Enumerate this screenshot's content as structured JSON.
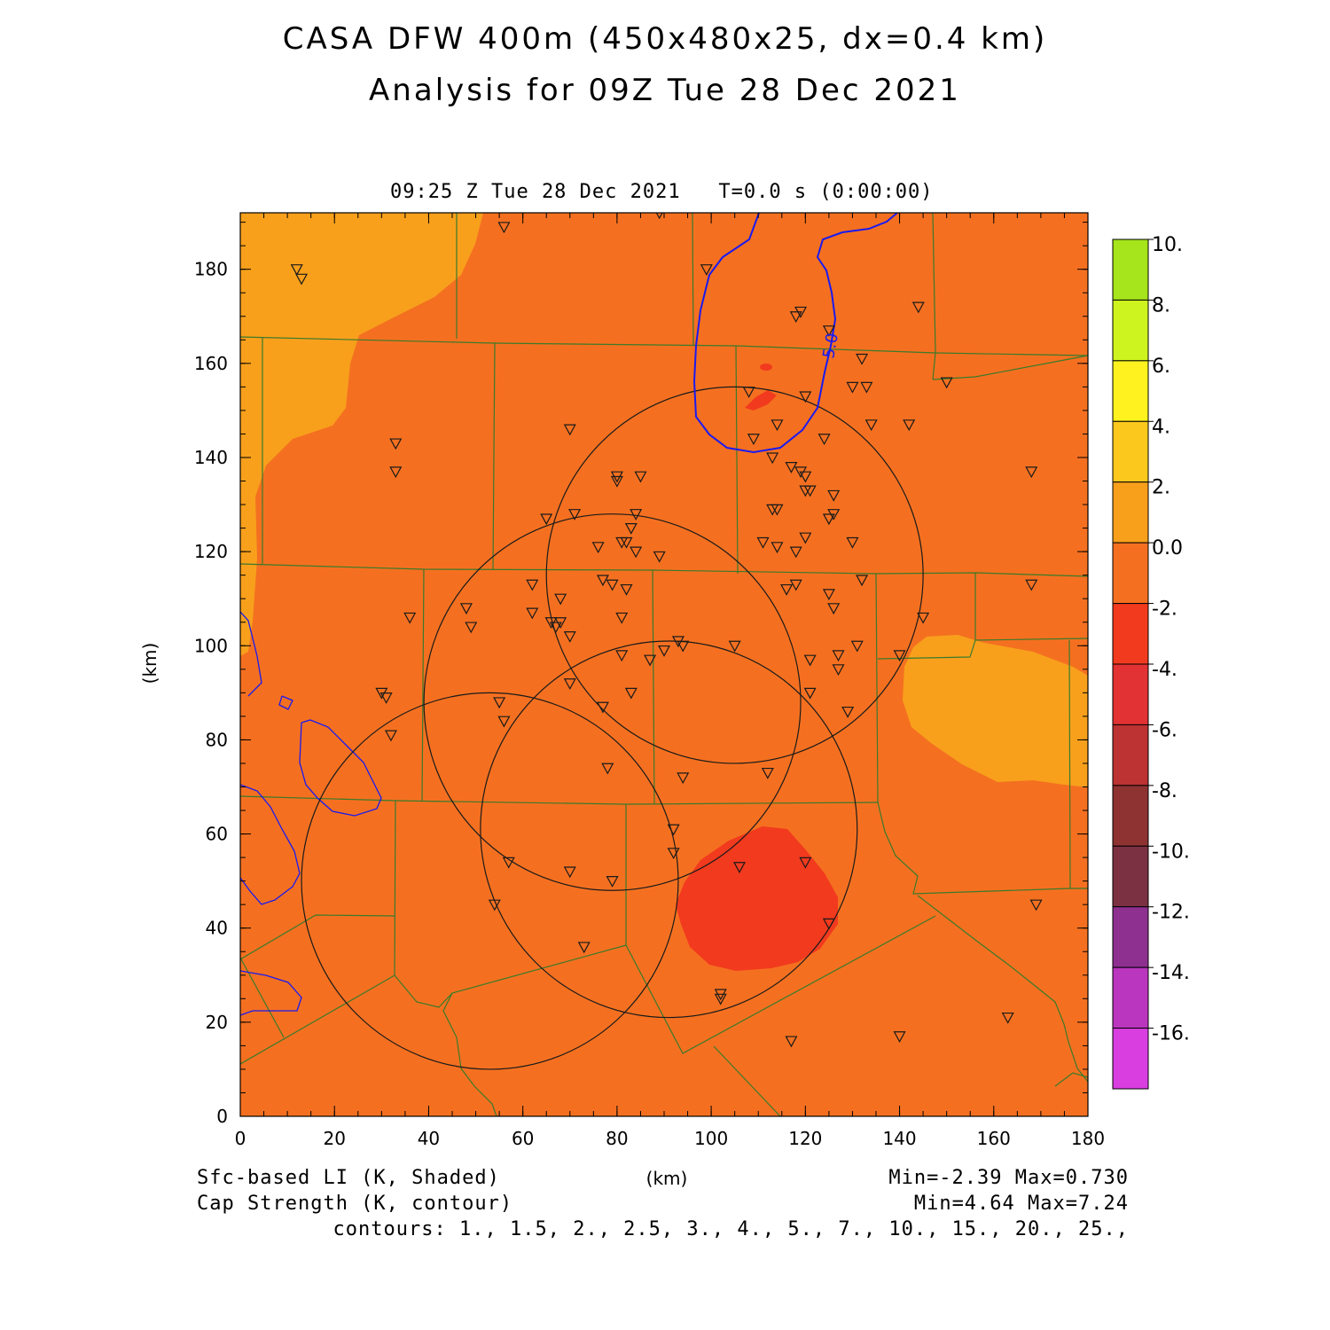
{
  "title": {
    "line1": "CASA DFW 400m (450x480x25, dx=0.4 km)",
    "line2": "Analysis for 09Z Tue 28 Dec 2021"
  },
  "subtitle": "09:25 Z Tue 28 Dec 2021   T=0.0 s (0:00:00)",
  "axes": {
    "xlabel": "(km)",
    "ylabel": "(km)",
    "xlim": [
      0,
      180
    ],
    "ylim": [
      0,
      192
    ],
    "xticks": [
      "0",
      "20",
      "40",
      "60",
      "80",
      "100",
      "120",
      "140",
      "160",
      "180"
    ],
    "yticks": [
      "0",
      "20",
      "40",
      "60",
      "80",
      "100",
      "120",
      "140",
      "160",
      "180"
    ]
  },
  "colorbar": {
    "labels": [
      "10.",
      "8.",
      "6.",
      "4.",
      "2.",
      "0.0",
      "-2.",
      "-4.",
      "-6.",
      "-8.",
      "-10.",
      "-12.",
      "-14.",
      "-16."
    ],
    "colors": [
      "#a6e41c",
      "#cdf41e",
      "#fff21e",
      "#fbc81e",
      "#f8a01c",
      "#f47020",
      "#f23a1e",
      "#e23234",
      "#bd3232",
      "#8e3232",
      "#7b3142",
      "#8e3090",
      "#bb36be",
      "#d93ee0"
    ]
  },
  "legend": {
    "shaded_label": "Sfc-based LI (K, Shaded)",
    "center_label": "(km)",
    "shaded_range": "Min=-2.39 Max=0.730",
    "contour_label": "Cap Strength (K, contour)",
    "contour_range": "Min=4.64 Max=7.24",
    "contours": "contours: 1., 1.5, 2., 2.5, 3., 4., 5., 7., 10., 15., 20., 25.,"
  },
  "contour_label_text": "5.0",
  "field": {
    "background_color": "#f47020",
    "warm_color": "#f8a01c",
    "cold_color": "#f23a1e",
    "contour_color": "#1a1af0",
    "county_color": "#3a7a2a",
    "radar_color": "#1a1a1a"
  },
  "chart_data": {
    "type": "map",
    "title": "CASA DFW 400m (450x480x25, dx=0.4 km)",
    "field": "Sfc-based LI (K, Shaded)",
    "contour_field": "Cap Strength (K, contour)",
    "shaded_min": -2.39,
    "shaded_max": 0.73,
    "contour_min": 4.64,
    "contour_max": 7.24,
    "radar_rings": [
      {
        "x": 105,
        "y": 115,
        "r": 40
      },
      {
        "x": 79,
        "y": 88,
        "r": 40
      },
      {
        "x": 53,
        "y": 50,
        "r": 40
      },
      {
        "x": 91,
        "y": 61,
        "r": 40
      }
    ],
    "stations": [
      [
        56,
        189
      ],
      [
        89,
        192
      ],
      [
        12,
        180
      ],
      [
        13,
        178
      ],
      [
        99,
        180
      ],
      [
        118,
        170
      ],
      [
        119,
        171
      ],
      [
        125,
        167
      ],
      [
        144,
        172
      ],
      [
        33,
        143
      ],
      [
        33,
        137
      ],
      [
        70,
        146
      ],
      [
        108,
        154
      ],
      [
        120,
        153
      ],
      [
        109,
        144
      ],
      [
        114,
        147
      ],
      [
        124,
        144
      ],
      [
        132,
        161
      ],
      [
        130,
        155
      ],
      [
        133,
        155
      ],
      [
        134,
        147
      ],
      [
        142,
        147
      ],
      [
        150,
        156
      ],
      [
        168,
        137
      ],
      [
        80,
        136
      ],
      [
        80,
        135
      ],
      [
        85,
        136
      ],
      [
        113,
        140
      ],
      [
        117,
        138
      ],
      [
        119,
        137
      ],
      [
        120,
        136
      ],
      [
        120,
        133
      ],
      [
        121,
        133
      ],
      [
        126,
        132
      ],
      [
        113,
        129
      ],
      [
        114,
        129
      ],
      [
        126,
        128
      ],
      [
        125,
        127
      ],
      [
        65,
        127
      ],
      [
        71,
        128
      ],
      [
        84,
        128
      ],
      [
        83,
        125
      ],
      [
        82,
        122
      ],
      [
        81,
        122
      ],
      [
        76,
        121
      ],
      [
        84,
        120
      ],
      [
        89,
        119
      ],
      [
        111,
        122
      ],
      [
        114,
        121
      ],
      [
        118,
        120
      ],
      [
        120,
        123
      ],
      [
        130,
        122
      ],
      [
        62,
        113
      ],
      [
        77,
        114
      ],
      [
        79,
        113
      ],
      [
        82,
        112
      ],
      [
        118,
        113
      ],
      [
        116,
        112
      ],
      [
        125,
        111
      ],
      [
        126,
        108
      ],
      [
        132,
        114
      ],
      [
        168,
        113
      ],
      [
        36,
        106
      ],
      [
        48,
        108
      ],
      [
        49,
        104
      ],
      [
        62,
        107
      ],
      [
        66,
        105
      ],
      [
        67,
        104
      ],
      [
        68,
        105
      ],
      [
        68,
        110
      ],
      [
        70,
        102
      ],
      [
        81,
        106
      ],
      [
        93,
        101
      ],
      [
        94,
        100
      ],
      [
        105,
        100
      ],
      [
        127,
        98
      ],
      [
        131,
        100
      ],
      [
        145,
        106
      ],
      [
        140,
        98
      ],
      [
        81,
        98
      ],
      [
        87,
        97
      ],
      [
        90,
        99
      ],
      [
        121,
        97
      ],
      [
        127,
        95
      ],
      [
        30,
        90
      ],
      [
        31,
        89
      ],
      [
        32,
        81
      ],
      [
        55,
        88
      ],
      [
        56,
        84
      ],
      [
        70,
        92
      ],
      [
        77,
        87
      ],
      [
        83,
        90
      ],
      [
        121,
        90
      ],
      [
        129,
        86
      ],
      [
        78,
        74
      ],
      [
        94,
        72
      ],
      [
        112,
        73
      ],
      [
        92,
        61
      ],
      [
        92,
        56
      ],
      [
        120,
        54
      ],
      [
        57,
        54
      ],
      [
        70,
        52
      ],
      [
        79,
        50
      ],
      [
        106,
        53
      ],
      [
        54,
        45
      ],
      [
        125,
        41
      ],
      [
        169,
        45
      ],
      [
        73,
        36
      ],
      [
        102,
        26
      ],
      [
        102,
        25
      ],
      [
        163,
        21
      ],
      [
        117,
        16
      ],
      [
        140,
        17
      ]
    ]
  }
}
